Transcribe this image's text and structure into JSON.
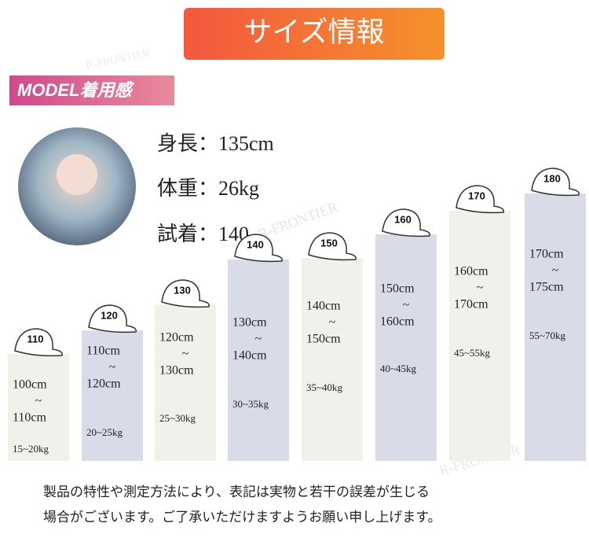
{
  "header": {
    "title": "サイズ情報"
  },
  "model": {
    "badge": "MODEL着用感",
    "stats": [
      "身長：135cm",
      "体重：26kg",
      "試着：140"
    ]
  },
  "sizes": [
    {
      "size": "110",
      "range": [
        "100cm",
        "~",
        "110cm"
      ],
      "weight": "15~20kg"
    },
    {
      "size": "120",
      "range": [
        "110cm",
        "~",
        "120cm"
      ],
      "weight": "20~25kg"
    },
    {
      "size": "130",
      "range": [
        "120cm",
        "~",
        "130cm"
      ],
      "weight": "25~30kg"
    },
    {
      "size": "140",
      "range": [
        "130cm",
        "~",
        "140cm"
      ],
      "weight": "30~35kg"
    },
    {
      "size": "150",
      "range": [
        "140cm",
        "~",
        "150cm"
      ],
      "weight": "35~40kg"
    },
    {
      "size": "160",
      "range": [
        "150cm",
        "~",
        "160cm"
      ],
      "weight": "40~45kg"
    },
    {
      "size": "170",
      "range": [
        "160cm",
        "~",
        "170cm"
      ],
      "weight": "45~55kg"
    },
    {
      "size": "180",
      "range": [
        "170cm",
        "~",
        "175cm"
      ],
      "weight": "55~70kg"
    }
  ],
  "watermark": "R-FRONTIER",
  "note": [
    "製品の特性や測定方法により、表記は実物と若干の誤差が生じる",
    "場合がございます。ご了承いただけますようお願い申し上げます。"
  ]
}
